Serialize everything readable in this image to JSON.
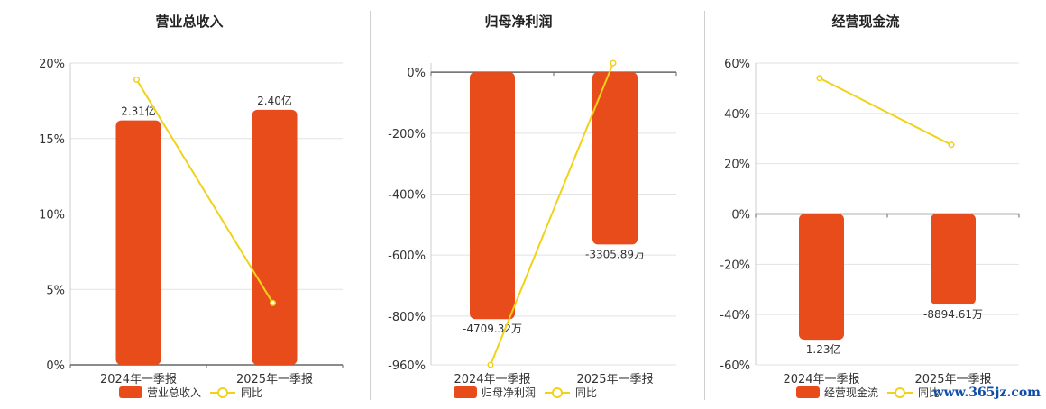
{
  "watermark": "www.365jz.com",
  "colors": {
    "bar": "#e84c1a",
    "line": "#f0d21a",
    "grid": "#e2e2e2",
    "axis": "#444444",
    "text": "#333333"
  },
  "chart_data": [
    {
      "type": "bar",
      "title": "营业总收入",
      "categories": [
        "2024年一季报",
        "2025年一季报"
      ],
      "series": [
        {
          "name": "营业总收入",
          "kind": "bar",
          "values": [
            16.2,
            16.9
          ],
          "labels": [
            "2.31亿",
            "2.40亿"
          ]
        },
        {
          "name": "同比",
          "kind": "line",
          "values": [
            18.9,
            4.1
          ]
        }
      ],
      "yticks": [
        "0%",
        "5%",
        "10%",
        "15%",
        "20%"
      ],
      "ylim": [
        0,
        20
      ],
      "grid": true,
      "legend": "bottom"
    },
    {
      "type": "bar",
      "title": "归母净利润",
      "categories": [
        "2024年一季报",
        "2025年一季报"
      ],
      "series": [
        {
          "name": "归母净利润",
          "kind": "bar",
          "values": [
            -810,
            -565
          ],
          "labels": [
            "-4709.32万",
            "-3305.89万"
          ]
        },
        {
          "name": "同比",
          "kind": "line",
          "values": [
            -960,
            30
          ]
        }
      ],
      "yticks": [
        "-960%",
        "-800%",
        "-600%",
        "-400%",
        "-200%",
        "0%"
      ],
      "ylim": [
        -960,
        30
      ],
      "grid": true,
      "legend": "bottom"
    },
    {
      "type": "bar",
      "title": "经营现金流",
      "categories": [
        "2024年一季报",
        "2025年一季报"
      ],
      "series": [
        {
          "name": "经营现金流",
          "kind": "bar",
          "values": [
            -50,
            -36
          ],
          "labels": [
            "-1.23亿",
            "-8894.61万"
          ]
        },
        {
          "name": "同比",
          "kind": "line",
          "values": [
            54,
            27.5
          ]
        }
      ],
      "yticks": [
        "-60%",
        "-40%",
        "-20%",
        "0%",
        "20%",
        "40%",
        "60%"
      ],
      "ylim": [
        -60,
        60
      ],
      "grid": true,
      "legend": "bottom"
    }
  ]
}
